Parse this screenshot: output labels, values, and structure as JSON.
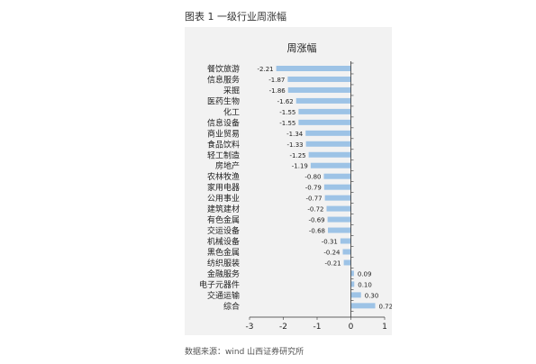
{
  "page": {
    "caption": "图表 1 一级行业周涨幅",
    "source": "数据来源：wind 山西证券研究所"
  },
  "chart_data": {
    "type": "bar",
    "orientation": "horizontal",
    "title": "周涨幅",
    "xlabel": "",
    "ylabel": "",
    "xlim": [
      -3,
      1
    ],
    "xticks": [
      -3,
      -2,
      -1,
      0,
      1
    ],
    "grid": false,
    "legend": "none",
    "bar_color": "#9dc3e6",
    "categories": [
      "餐饮旅游",
      "信息服务",
      "采掘",
      "医药生物",
      "化工",
      "信息设备",
      "商业贸易",
      "食品饮料",
      "轻工制造",
      "房地产",
      "农林牧渔",
      "家用电器",
      "公用事业",
      "建筑建材",
      "有色金属",
      "交运设备",
      "机械设备",
      "黑色金属",
      "纺织服装",
      "金融服务",
      "电子元器件",
      "交通运输",
      "综合"
    ],
    "values": [
      -2.21,
      -1.87,
      -1.86,
      -1.62,
      -1.55,
      -1.55,
      -1.34,
      -1.33,
      -1.25,
      -1.19,
      -0.8,
      -0.79,
      -0.77,
      -0.72,
      -0.69,
      -0.68,
      -0.31,
      -0.24,
      -0.21,
      0.09,
      0.1,
      0.3,
      0.72
    ],
    "value_labels": [
      "-2.21",
      "-1.87",
      "-1.86",
      "-1.62",
      "-1.55",
      "-1.55",
      "-1.34",
      "-1.33",
      "-1.25",
      "-1.19",
      "-0.80",
      "-0.79",
      "-0.77",
      "-0.72",
      "-0.69",
      "-0.68",
      "-0.31",
      "-0.24",
      "-0.21",
      "0.09",
      "0.10",
      "0.30",
      "0.72"
    ]
  }
}
